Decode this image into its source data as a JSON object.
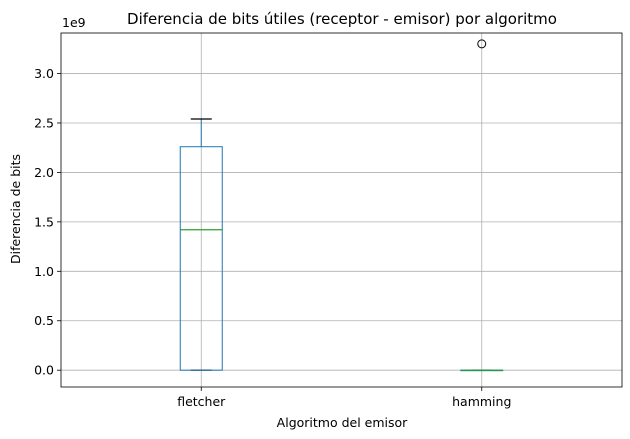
{
  "chart_data": {
    "type": "box",
    "title": "Diferencia de bits útiles (receptor - emisor) por algoritmo",
    "xlabel": "Algoritmo del emisor",
    "ylabel": "Diferencia de bits",
    "y_offset_label": "1e9",
    "y_scale_factor": 1000000000,
    "ylim": [
      -170000000,
      3410000000
    ],
    "y_ticks": [
      0,
      500000000,
      1000000000,
      1500000000,
      2000000000,
      2500000000,
      3000000000
    ],
    "y_tick_labels": [
      "0.0",
      "0.5",
      "1.0",
      "1.5",
      "2.0",
      "2.5",
      "3.0"
    ],
    "grid": true,
    "categories": [
      "fletcher",
      "hamming"
    ],
    "boxes": [
      {
        "category": "fletcher",
        "whisker_low": 0,
        "q1": 0,
        "median": 1420000000,
        "q3": 2260000000,
        "whisker_high": 2540000000,
        "outliers": []
      },
      {
        "category": "hamming",
        "whisker_low": 0,
        "q1": 0,
        "median": 0,
        "q3": 0,
        "whisker_high": 0,
        "outliers": [
          3300000000
        ]
      }
    ],
    "colors": {
      "box": "#1f77b4",
      "median": "#2ca02c",
      "whisker": "#000000",
      "grid": "#b0b0b0"
    }
  }
}
